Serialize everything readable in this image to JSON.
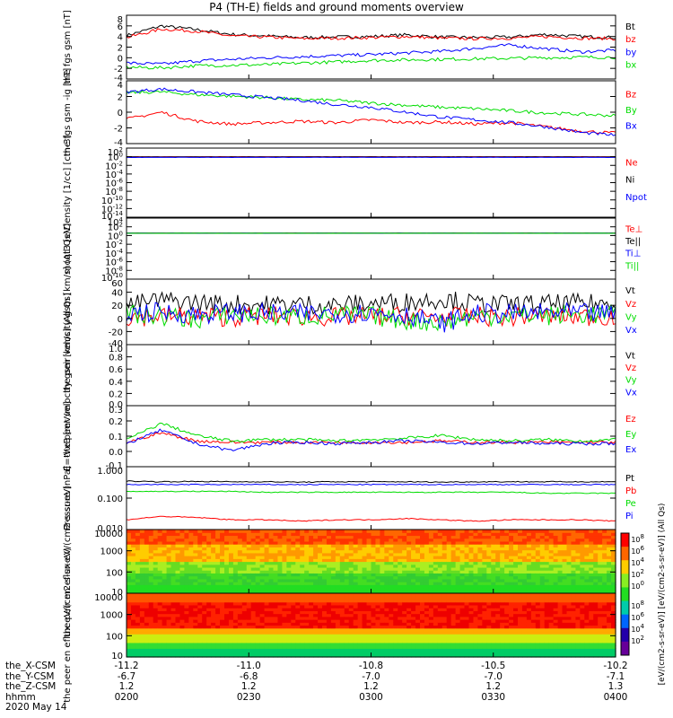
{
  "title": "P4 (TH-E) fields and ground moments overview",
  "chart_data": [
    {
      "type": "line",
      "ylabel": "the fgs gsm [nT]",
      "yticks": [
        "8",
        "6",
        "4",
        "2",
        "0",
        "-2",
        "-4"
      ],
      "ylim": [
        -4,
        8
      ],
      "series": [
        {
          "name": "Bt",
          "color": "#000000",
          "values": [
            4.2,
            6.0,
            5.3,
            4.4,
            4.1,
            3.8,
            3.9,
            4.0,
            4.3,
            3.9,
            3.8,
            3.9,
            4.4,
            4.0,
            3.8
          ]
        },
        {
          "name": "bz",
          "color": "#ff0000",
          "values": [
            3.8,
            5.4,
            5.0,
            4.1,
            3.9,
            3.6,
            3.7,
            3.8,
            4.0,
            3.7,
            3.6,
            3.7,
            4.0,
            3.7,
            3.6
          ]
        },
        {
          "name": "by",
          "color": "#0000ff",
          "values": [
            -1.0,
            -1.2,
            -0.6,
            -0.3,
            0.0,
            0.2,
            0.4,
            0.6,
            0.9,
            1.2,
            1.8,
            2.4,
            1.7,
            1.1,
            1.4
          ]
        },
        {
          "name": "bx",
          "color": "#00dd00",
          "values": [
            -1.8,
            -1.9,
            -1.5,
            -1.4,
            -1.3,
            -1.0,
            -0.8,
            -0.5,
            -0.4,
            -0.3,
            -0.2,
            -0.1,
            0.0,
            0.1,
            0.1
          ]
        }
      ]
    },
    {
      "type": "line",
      "ylabel": "the fgs gsm -ig [nT]",
      "yticks": [
        "4",
        "2",
        "0",
        "-2",
        "-4"
      ],
      "ylim": [
        -5,
        4
      ],
      "series": [
        {
          "name": "Bz",
          "color": "#ff0000",
          "values": [
            -1.5,
            -0.5,
            -1.8,
            -2.2,
            -2.0,
            -1.8,
            -2.0,
            -1.6,
            -2.0,
            -1.9,
            -2.2,
            -2.0,
            -2.6,
            -3.2,
            -3.5
          ]
        },
        {
          "name": "By",
          "color": "#00dd00",
          "values": [
            2.3,
            2.4,
            2.0,
            1.8,
            1.6,
            1.3,
            1.2,
            0.8,
            0.5,
            0.2,
            0.0,
            -0.3,
            -0.6,
            -0.8,
            -1.0
          ]
        },
        {
          "name": "Bx",
          "color": "#0000ff",
          "values": [
            2.4,
            2.8,
            2.4,
            2.0,
            1.6,
            1.2,
            0.6,
            0.2,
            -0.5,
            -1.2,
            -1.6,
            -2.0,
            -2.6,
            -3.4,
            -3.8
          ]
        }
      ]
    },
    {
      "type": "line",
      "ylog": true,
      "ylabel": "Density [1/cc] [cm-3]",
      "yticks": [
        "10^2",
        "10^0",
        "10^-2",
        "10^-4",
        "10^-6",
        "10^-8",
        "10^-10",
        "10^-12",
        "10^-14"
      ],
      "ylim": [
        -14,
        2
      ],
      "series": [
        {
          "name": "Ne",
          "color": "#ff0000",
          "values": [
            1,
            1,
            1,
            1,
            1,
            1,
            1,
            1,
            1,
            1,
            1,
            1,
            1,
            1,
            1
          ]
        },
        {
          "name": "Ni",
          "color": "#000000",
          "values": [
            0.9,
            0.9,
            0.9,
            0.9,
            0.9,
            0.9,
            0.9,
            0.9,
            0.9,
            0.9,
            0.9,
            0.9,
            0.9,
            0.9,
            0.9
          ]
        },
        {
          "name": "Npot",
          "color": "#0000ff",
          "values": [
            0.7,
            0.7,
            0.7,
            0.7,
            0.7,
            0.7,
            0.7,
            0.7,
            0.7,
            0.7,
            0.7,
            0.7,
            0.7,
            0.7,
            0.7
          ]
        }
      ]
    },
    {
      "type": "line",
      "ylog": true,
      "ylabel": "moqt3 [eV]",
      "yticks": [
        "10^4",
        "10^2",
        "10^0",
        "10^-2",
        "10^-4",
        "10^-6",
        "10^-8",
        "10^-10"
      ],
      "ylim": [
        -10,
        4
      ],
      "series": [
        {
          "name": "Te⊥",
          "color": "#ff0000",
          "values": [
            3.5,
            3.5,
            3.5,
            3.5,
            3.5,
            3.5,
            3.5,
            3.5,
            3.5,
            3.5,
            3.5,
            3.5,
            3.5,
            3.5,
            3.5
          ]
        },
        {
          "name": "Te||",
          "color": "#000000",
          "values": [
            3.6,
            3.6,
            3.6,
            3.6,
            3.6,
            3.6,
            3.6,
            3.6,
            3.6,
            3.6,
            3.6,
            3.6,
            3.6,
            3.6,
            3.6
          ]
        },
        {
          "name": "Ti⊥",
          "color": "#0000ff",
          "values": [
            3.4,
            3.4,
            3.4,
            3.4,
            3.4,
            3.4,
            3.4,
            3.4,
            3.4,
            3.4,
            3.4,
            3.4,
            3.4,
            3.4,
            3.4
          ]
        },
        {
          "name": "Ti||",
          "color": "#00dd00",
          "values": [
            3.3,
            3.3,
            3.3,
            3.3,
            3.3,
            3.3,
            3.3,
            3.3,
            3.3,
            3.3,
            3.3,
            3.3,
            3.3,
            3.3,
            3.3
          ]
        }
      ]
    },
    {
      "type": "line",
      "ylabel": "the peir velocity gsm [km/s] (All Qs)",
      "yticks": [
        "60",
        "40",
        "20",
        "0",
        "-20",
        "-40"
      ],
      "ylim": [
        -40,
        60
      ],
      "series": [
        {
          "name": "Vt",
          "color": "#000000",
          "values": [
            20,
            28,
            24,
            22,
            21,
            22,
            20,
            23,
            25,
            30,
            22,
            21,
            22,
            23,
            22
          ]
        },
        {
          "name": "Vz",
          "color": "#ff0000",
          "values": [
            2,
            4,
            3,
            2,
            4,
            3,
            2,
            3,
            4,
            2,
            3,
            2,
            4,
            3,
            3
          ]
        },
        {
          "name": "Vy",
          "color": "#00dd00",
          "values": [
            6,
            4,
            -2,
            6,
            4,
            3,
            5,
            4,
            -3,
            -6,
            3,
            5,
            4,
            6,
            5
          ]
        },
        {
          "name": "Vx",
          "color": "#0000ff",
          "values": [
            8,
            10,
            6,
            9,
            8,
            7,
            8,
            9,
            6,
            -8,
            8,
            7,
            9,
            8,
            7
          ]
        }
      ]
    },
    {
      "type": "line",
      "ylabel": "the peer velocity gsm [km/s] (All Qs)",
      "yticks": [
        "1.0",
        "0.8",
        "0.6",
        "0.4",
        "0.2",
        "0.0"
      ],
      "ylim": [
        0,
        1
      ],
      "series": [
        {
          "name": "Vt",
          "color": "#000000",
          "values": []
        },
        {
          "name": "Vz",
          "color": "#ff0000",
          "values": []
        },
        {
          "name": "Vy",
          "color": "#00dd00",
          "values": []
        },
        {
          "name": "Vx",
          "color": "#0000ff",
          "values": []
        }
      ]
    },
    {
      "type": "line",
      "ylabel": "E=-VxB [mV/m]",
      "yticks": [
        "0.3",
        "0.2",
        "0.1",
        "0.0",
        "-0.1"
      ],
      "ylim": [
        -0.15,
        0.3
      ],
      "series": [
        {
          "name": "Ez",
          "color": "#ff0000",
          "values": [
            0.03,
            0.1,
            0.04,
            0.03,
            0.03,
            0.03,
            0.03,
            0.03,
            0.03,
            0.04,
            0.03,
            0.03,
            0.03,
            0.03,
            0.03
          ]
        },
        {
          "name": "Ey",
          "color": "#00dd00",
          "values": [
            0.05,
            0.17,
            0.08,
            0.04,
            0.05,
            0.05,
            0.04,
            0.05,
            0.06,
            0.08,
            0.05,
            0.04,
            0.05,
            0.04,
            0.05
          ]
        },
        {
          "name": "Ex",
          "color": "#0000ff",
          "values": [
            0.02,
            0.12,
            0.02,
            -0.03,
            0.02,
            0.03,
            0.02,
            0.03,
            0.04,
            0.03,
            0.02,
            0.03,
            0.02,
            0.02,
            0.02
          ]
        }
      ]
    },
    {
      "type": "line",
      "ylog": true,
      "ylabel": "Pressure [nPa]",
      "yticks": [
        "1.000",
        "0.100",
        "0.010"
      ],
      "ylim": [
        -2.5,
        0.1
      ],
      "series": [
        {
          "name": "Pt",
          "color": "#000000",
          "values": [
            0.32,
            0.3,
            0.31,
            0.3,
            0.3,
            0.29,
            0.3,
            0.3,
            0.3,
            0.29,
            0.3,
            0.3,
            0.3,
            0.3,
            0.3
          ]
        },
        {
          "name": "Pb",
          "color": "#ff0000",
          "values": [
            0.008,
            0.011,
            0.01,
            0.008,
            0.008,
            0.007,
            0.008,
            0.008,
            0.009,
            0.008,
            0.007,
            0.008,
            0.008,
            0.008,
            0.007
          ]
        },
        {
          "name": "Pe",
          "color": "#00dd00",
          "values": [
            0.12,
            0.12,
            0.12,
            0.12,
            0.11,
            0.11,
            0.11,
            0.11,
            0.11,
            0.11,
            0.11,
            0.11,
            0.1,
            0.1,
            0.1
          ]
        },
        {
          "name": "Pi",
          "color": "#0000ff",
          "values": [
            0.23,
            0.23,
            0.23,
            0.23,
            0.23,
            0.23,
            0.23,
            0.23,
            0.23,
            0.23,
            0.23,
            0.23,
            0.23,
            0.23,
            0.23
          ]
        }
      ]
    },
    {
      "type": "heatmap",
      "ylabel": "the peir en eflux eV/(cm2-s-sr-eV)",
      "yticks": [
        "10000",
        "1000",
        "100",
        "10"
      ],
      "ylim": [
        5,
        20000
      ]
    },
    {
      "type": "heatmap",
      "ylabel": "the peer en eflux eV/(cm2-s-sr-eV)",
      "yticks": [
        "10000",
        "1000",
        "100",
        "10"
      ],
      "ylim": [
        5,
        20000
      ]
    }
  ],
  "colorbar": {
    "label": "[eV/(cm2-s-sr-eV)] [eV/(cm2-s-sr-eV)] (All Qs)",
    "ticks_upper": [
      "10^8",
      "10^6",
      "10^4",
      "10^2",
      "10^0"
    ],
    "ticks_lower": [
      "10^8",
      "10^6",
      "10^4",
      "10^2"
    ]
  },
  "xaxis": {
    "tick_fractions": [
      0,
      0.25,
      0.5,
      0.75,
      1
    ],
    "rows": [
      {
        "label": "the_X-CSM",
        "values": [
          "-11.2",
          "-11.0",
          "-10.8",
          "-10.5",
          "-10.2"
        ]
      },
      {
        "label": "the_Y-CSM",
        "values": [
          "-6.7",
          "-6.8",
          "-7.0",
          "-7.0",
          "-7.1"
        ]
      },
      {
        "label": "the_Z-CSM",
        "values": [
          "1.2",
          "1.2",
          "1.2",
          "1.2",
          "1.3"
        ]
      },
      {
        "label": "hhmm",
        "values": [
          "0200",
          "0230",
          "0300",
          "0330",
          "0400"
        ]
      }
    ],
    "date": "2020 May 14"
  }
}
